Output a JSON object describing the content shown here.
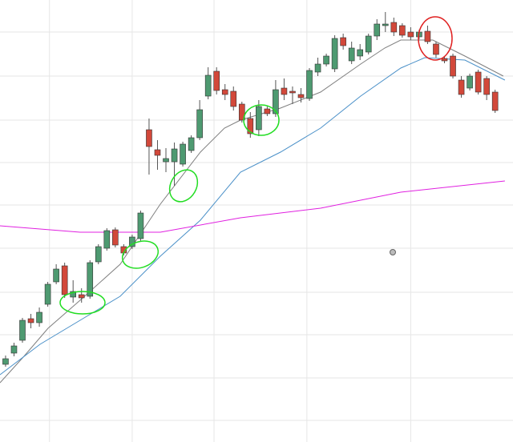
{
  "chart_data": {
    "type": "candlestick",
    "x": [
      0,
      1,
      2,
      3,
      4,
      5,
      6,
      7,
      8,
      9,
      10,
      11,
      12,
      13,
      14,
      15,
      16,
      17,
      18,
      19,
      20,
      21,
      22,
      23,
      24,
      25,
      26,
      27,
      28,
      29,
      30,
      31,
      32,
      33,
      34,
      35,
      36,
      37,
      38,
      39,
      40,
      41,
      42,
      43,
      44,
      45,
      46,
      47,
      48,
      49,
      50,
      51,
      52,
      53,
      54,
      55,
      56,
      57,
      58
    ],
    "open": [
      97,
      111,
      127,
      154,
      149,
      172,
      200,
      220,
      181,
      184,
      182,
      225,
      242,
      265,
      244,
      244,
      254,
      390,
      365,
      350,
      350,
      347,
      364,
      380,
      432,
      463,
      440,
      438,
      422,
      404,
      390,
      416,
      410,
      442,
      438,
      434,
      429,
      462,
      472,
      466,
      505,
      476,
      482,
      487,
      507,
      520,
      524,
      520,
      512,
      506,
      513,
      497,
      479,
      482,
      452,
      442,
      462,
      454,
      437
    ],
    "high": [
      108,
      124,
      155,
      160,
      168,
      200,
      222,
      224,
      202,
      192,
      227,
      247,
      267,
      268,
      247,
      259,
      289,
      404,
      377,
      367,
      374,
      375,
      383,
      427,
      468,
      468,
      447,
      444,
      425,
      412,
      427,
      419,
      452,
      454,
      444,
      442,
      467,
      480,
      485,
      508,
      510,
      500,
      497,
      510,
      528,
      537,
      530,
      523,
      518,
      515,
      520,
      500,
      482,
      485,
      457,
      460,
      465,
      457,
      440
    ],
    "low": [
      94,
      107,
      124,
      142,
      144,
      169,
      197,
      180,
      174,
      174,
      179,
      222,
      239,
      243,
      233,
      241,
      251,
      334,
      340,
      337,
      320,
      344,
      361,
      377,
      428,
      434,
      427,
      414,
      399,
      380,
      382,
      407,
      406,
      427,
      422,
      424,
      426,
      457,
      469,
      462,
      490,
      472,
      477,
      484,
      502,
      512,
      507,
      505,
      502,
      503,
      497,
      480,
      473,
      454,
      430,
      439,
      434,
      427,
      411
    ],
    "close": [
      104,
      120,
      152,
      149,
      162,
      197,
      216,
      184,
      188,
      180,
      224,
      244,
      264,
      246,
      236,
      256,
      286,
      369,
      358,
      354,
      366,
      372,
      380,
      415,
      458,
      439,
      434,
      419,
      402,
      385,
      419,
      410,
      440,
      434,
      436,
      430,
      464,
      472,
      482,
      504,
      495,
      492,
      490,
      507,
      522,
      522,
      512,
      508,
      506,
      512,
      500,
      484,
      476,
      457,
      434,
      457,
      437,
      434,
      414
    ],
    "up_color": "#4e9a71",
    "down_color": "#d2483a",
    "lines": [
      {
        "color": "#7f7f7f",
        "x": [
          -0.66,
          2.18,
          5.03,
          8.83,
          13.58,
          18.33,
          23.08,
          25.93,
          27.83,
          32.57,
          37.32,
          42.07,
          44.92,
          46.82,
          50.62,
          54.42,
          58.97
        ],
        "values": [
          74,
          107,
          142,
          177,
          222,
          297,
          362,
          392,
          402,
          417,
          437,
          472,
          492,
          502,
          502,
          482,
          457
        ]
      },
      {
        "color": "#4a90c8",
        "x": [
          -0.66,
          4.08,
          8.83,
          13.58,
          18.33,
          23.08,
          27.83,
          32.57,
          37.32,
          42.07,
          46.82,
          49.67,
          54.42,
          59.16
        ],
        "values": [
          84,
          122,
          152,
          182,
          232,
          277,
          337,
          362,
          392,
          432,
          467,
          480,
          477,
          452
        ]
      },
      {
        "color": "#e020e0",
        "x": [
          -0.66,
          8.83,
          18.33,
          27.83,
          37.32,
          46.82,
          59.16
        ],
        "values": [
          270,
          262,
          262,
          280,
          292,
          312,
          326
        ]
      }
    ],
    "xlim": [
      -0.66,
      60.12
    ],
    "ylim": [
      0,
      552
    ],
    "xticks": [
      5.2,
      15,
      24.7,
      35.7,
      48
    ],
    "yticks": [
      27,
      80,
      134,
      187,
      242,
      296,
      349,
      402,
      457,
      512
    ],
    "grid": true
  }
}
